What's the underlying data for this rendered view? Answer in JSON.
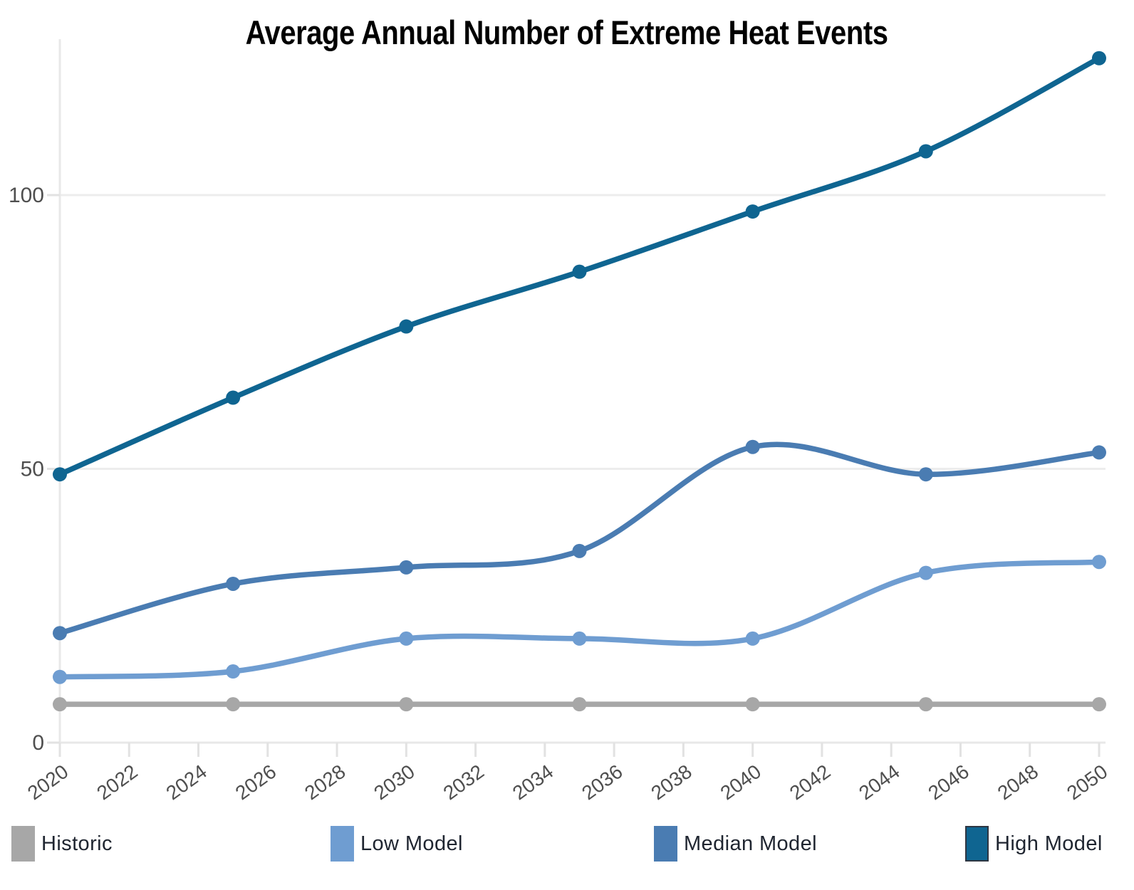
{
  "chart_data": {
    "type": "line",
    "title": "Average Annual Number of Extreme Heat Events",
    "xlabel": "",
    "ylabel": "",
    "x": [
      2020,
      2025,
      2030,
      2035,
      2040,
      2045,
      2050
    ],
    "x_ticks": [
      2020,
      2022,
      2024,
      2026,
      2028,
      2030,
      2032,
      2034,
      2036,
      2038,
      2040,
      2042,
      2044,
      2046,
      2048,
      2050
    ],
    "y_ticks": [
      0,
      50,
      100
    ],
    "ylim": [
      0,
      130
    ],
    "xlim": [
      2020,
      2050
    ],
    "grid": "horizontal",
    "markers": true,
    "legend_position": "bottom",
    "series": [
      {
        "name": "Historic",
        "color": "#a7a7a7",
        "values": [
          7,
          7,
          7,
          7,
          7,
          7,
          7
        ]
      },
      {
        "name": "Low Model",
        "color": "#6f9dd1",
        "values": [
          12,
          13,
          19,
          19,
          19,
          31,
          33
        ]
      },
      {
        "name": "Median Model",
        "color": "#4a7cb2",
        "values": [
          20,
          29,
          32,
          35,
          54,
          49,
          53
        ]
      },
      {
        "name": "High Model",
        "color": "#0f6591",
        "values": [
          49,
          63,
          76,
          86,
          97,
          108,
          125
        ]
      }
    ],
    "colors": {
      "background": "#ffffff",
      "title_text": "#000000",
      "axis_line": "#e8e8e8",
      "gridline": "#ededed",
      "tick_mark": "#e2e2e2",
      "tick_label_text": "#4f4f4f",
      "legend_text": "#1f2530"
    }
  }
}
